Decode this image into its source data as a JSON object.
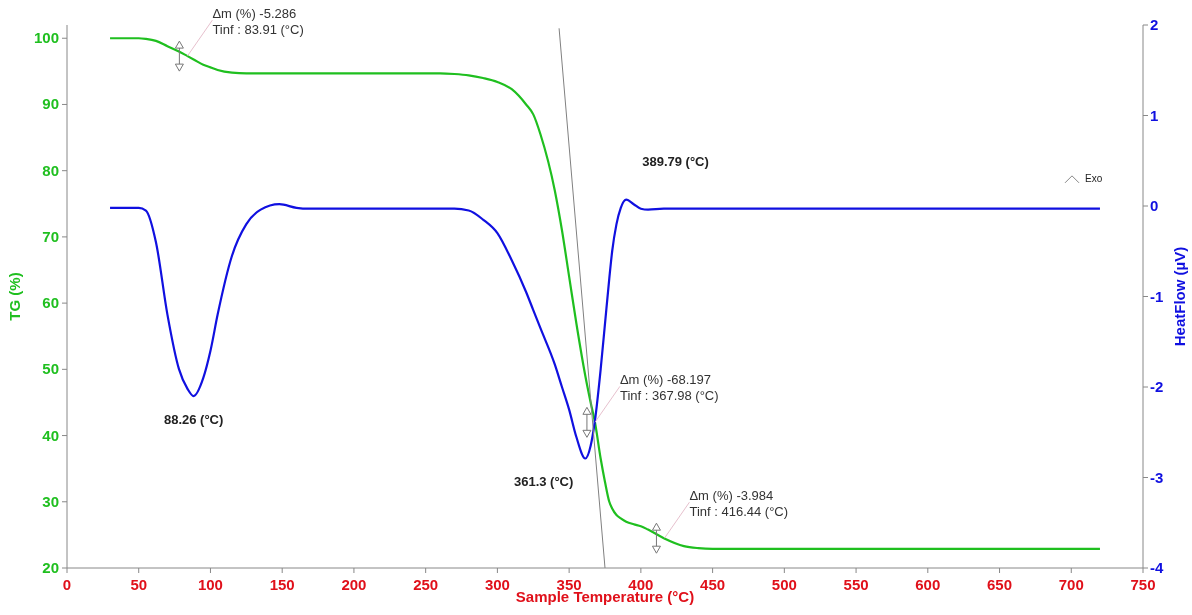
{
  "chart_data": {
    "type": "line",
    "xlabel": "Sample Temperature (°C)",
    "ylabel": "TG (%)",
    "y2label": "HeatFlow (µV)",
    "x": [
      30,
      50,
      55,
      62,
      70,
      78,
      84,
      88.26,
      95,
      100,
      105,
      115,
      125,
      135,
      148,
      160,
      168,
      260,
      270,
      280,
      290,
      300,
      310,
      320,
      325,
      330,
      340,
      345,
      350,
      355,
      361.3,
      365,
      368,
      372,
      375,
      378,
      380,
      383,
      386,
      389.79,
      395,
      400,
      405,
      416,
      430,
      440,
      450,
      720
    ],
    "series": [
      {
        "name": null,
        "color": "#1fbf1f",
        "values": [
          100,
          100,
          99.9,
          99.6,
          98.8,
          98,
          97.3,
          96.8,
          96,
          95.6,
          95.2,
          94.8,
          94.7,
          94.7,
          94.7,
          94.7,
          94.7,
          94.7,
          94.6,
          94.4,
          94,
          93.4,
          92.3,
          90,
          88.5,
          85.5,
          77,
          71,
          64,
          57,
          49,
          45,
          42,
          36.5,
          33,
          30,
          29,
          28,
          27.5,
          27,
          26.6,
          26.3,
          25.8,
          24.5,
          23.3,
          23,
          22.9,
          22.9
        ]
      },
      {
        "name": null,
        "color": "#1010e0",
        "axis": "y2",
        "values": [
          -0.02,
          -0.02,
          -0.05,
          -0.4,
          -1.2,
          -1.8,
          -2.02,
          -2.1,
          -1.9,
          -1.6,
          -1.2,
          -0.55,
          -0.2,
          -0.04,
          0.02,
          -0.02,
          -0.03,
          -0.03,
          -0.03,
          -0.05,
          -0.15,
          -0.3,
          -0.6,
          -0.95,
          -1.15,
          -1.35,
          -1.75,
          -2.0,
          -2.25,
          -2.55,
          -2.79,
          -2.65,
          -2.37,
          -1.8,
          -1.3,
          -0.8,
          -0.5,
          -0.2,
          -0.02,
          0.07,
          0.02,
          -0.03,
          -0.04,
          -0.03,
          -0.03,
          -0.03,
          -0.03,
          -0.03
        ]
      },
      {
        "name": null,
        "type": "line",
        "color": "#808080",
        "x": [
          343,
          375
        ],
        "values": [
          101.5,
          20
        ]
      }
    ],
    "xlim": [
      0,
      750
    ],
    "xticks": [
      0,
      50,
      100,
      150,
      200,
      250,
      300,
      350,
      400,
      450,
      500,
      550,
      600,
      650,
      700,
      750
    ],
    "ylim": [
      20,
      102
    ],
    "yticks": [
      20,
      30,
      40,
      50,
      60,
      70,
      80,
      90,
      100
    ],
    "y2lim": [
      -4,
      2
    ],
    "y2ticks": [
      -4,
      -3,
      -2,
      -1,
      0,
      1,
      2
    ],
    "grid": false,
    "annotations": [
      {
        "text": "Δm (%) -5.286",
        "x": 83.91,
        "y": 97.3
      },
      "Tinf : 83.91 (°C)",
      {
        "text": "Δm (%) -68.197",
        "x": 367.98,
        "y": 42
      },
      "Tinf : 367.98 (°C)",
      {
        "text": "Δm (%) -3.984",
        "x": 416.44,
        "y": 24.5
      },
      "Tinf : 416.44 (°C)",
      "88.26 (°C)",
      "361.3 (°C)",
      "389.79 (°C)",
      "Exo"
    ]
  }
}
